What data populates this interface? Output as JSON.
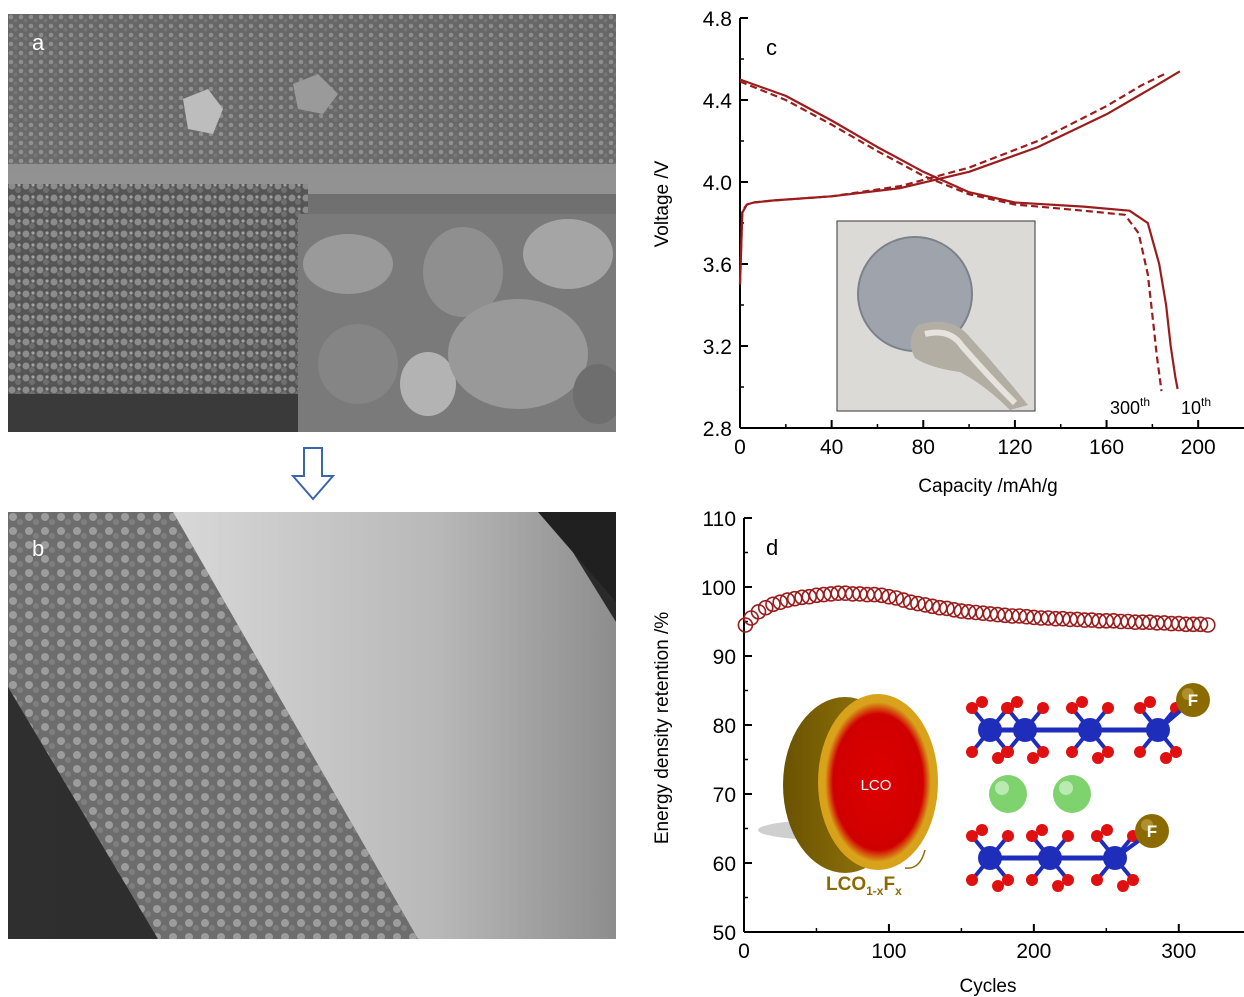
{
  "panels": {
    "a": {
      "label": "a"
    },
    "b": {
      "label": "b"
    },
    "c": {
      "label": "c"
    },
    "d": {
      "label": "d"
    }
  },
  "colors": {
    "curve": "#9b1c1c",
    "lco_core": "#cc0000",
    "shell": "#b8860b",
    "atom_co": "#1f2dbb",
    "atom_o": "#e01010",
    "atom_li": "#7ed36e"
  },
  "chart_data": [
    {
      "type": "line",
      "panel": "c",
      "xlabel": "Capacity /mAh/g",
      "ylabel": "Voltage /V",
      "xlim": [
        0,
        220
      ],
      "ylim": [
        2.8,
        4.8
      ],
      "xticks": [
        0,
        40,
        80,
        120,
        160,
        200
      ],
      "yticks": [
        2.8,
        3.2,
        3.6,
        4.0,
        4.4,
        4.8
      ],
      "ytick_labels": [
        "2.8",
        "3.2",
        "3.6",
        "4.0",
        "4.4",
        "4.8"
      ],
      "series": [
        {
          "name": "10th",
          "segment": "charge",
          "style": "solid",
          "x": [
            0,
            1,
            3,
            6,
            15,
            40,
            70,
            100,
            130,
            160,
            180,
            192
          ],
          "y": [
            3.5,
            3.85,
            3.89,
            3.9,
            3.91,
            3.93,
            3.97,
            4.05,
            4.17,
            4.33,
            4.46,
            4.54
          ]
        },
        {
          "name": "10th",
          "segment": "discharge",
          "style": "solid",
          "x": [
            0,
            20,
            40,
            60,
            80,
            100,
            120,
            150,
            170,
            178,
            183,
            186,
            188,
            190,
            191
          ],
          "y": [
            4.5,
            4.42,
            4.3,
            4.17,
            4.05,
            3.95,
            3.9,
            3.88,
            3.86,
            3.8,
            3.6,
            3.4,
            3.2,
            3.05,
            2.99
          ]
        },
        {
          "name": "300th",
          "segment": "charge",
          "style": "dashed",
          "x": [
            0,
            1,
            3,
            6,
            15,
            40,
            70,
            100,
            130,
            160,
            175,
            186
          ],
          "y": [
            3.5,
            3.86,
            3.89,
            3.9,
            3.91,
            3.93,
            3.98,
            4.07,
            4.2,
            4.37,
            4.47,
            4.53
          ]
        },
        {
          "name": "300th",
          "segment": "discharge",
          "style": "dashed",
          "x": [
            0,
            20,
            40,
            60,
            80,
            100,
            120,
            150,
            168,
            174,
            178,
            180,
            182,
            184
          ],
          "y": [
            4.49,
            4.4,
            4.28,
            4.15,
            4.03,
            3.94,
            3.89,
            3.86,
            3.84,
            3.75,
            3.55,
            3.35,
            3.15,
            2.98
          ]
        }
      ],
      "annotations": [
        {
          "base": "300",
          "sup": "th"
        },
        {
          "base": "10",
          "sup": "th"
        }
      ]
    },
    {
      "type": "scatter",
      "panel": "d",
      "xlabel": "Cycles",
      "ylabel": "Energy density retention /%",
      "xlim": [
        0,
        345
      ],
      "ylim": [
        50,
        110
      ],
      "xticks": [
        0,
        100,
        200,
        300
      ],
      "yticks": [
        50,
        60,
        70,
        80,
        90,
        100,
        110
      ],
      "series": [
        {
          "name": "",
          "marker": "open-circle",
          "x": [
            1,
            5,
            10,
            15,
            20,
            25,
            30,
            35,
            40,
            45,
            50,
            55,
            60,
            65,
            70,
            75,
            80,
            85,
            90,
            95,
            100,
            105,
            110,
            115,
            120,
            125,
            130,
            135,
            140,
            145,
            150,
            155,
            160,
            165,
            170,
            175,
            180,
            185,
            190,
            195,
            200,
            205,
            210,
            215,
            220,
            225,
            230,
            235,
            240,
            245,
            250,
            255,
            260,
            265,
            270,
            275,
            280,
            285,
            290,
            295,
            300,
            305,
            310,
            315,
            320
          ],
          "y": [
            94.5,
            95.5,
            96.4,
            97.0,
            97.5,
            97.8,
            98.1,
            98.3,
            98.5,
            98.6,
            98.8,
            98.9,
            99.0,
            99.1,
            99.1,
            99.0,
            99.0,
            98.9,
            98.9,
            98.8,
            98.6,
            98.4,
            98.1,
            97.8,
            97.6,
            97.4,
            97.2,
            97.0,
            96.9,
            96.7,
            96.5,
            96.4,
            96.3,
            96.2,
            96.1,
            96.0,
            95.9,
            95.8,
            95.8,
            95.7,
            95.6,
            95.5,
            95.5,
            95.4,
            95.4,
            95.3,
            95.3,
            95.2,
            95.2,
            95.1,
            95.1,
            95.1,
            95.0,
            95.0,
            94.9,
            94.9,
            94.9,
            94.8,
            94.8,
            94.7,
            94.7,
            94.6,
            94.6,
            94.6,
            94.5
          ]
        }
      ],
      "inset_labels": {
        "core": "LCO",
        "shell_base": "LCO",
        "shell_sub": "1-x",
        "shell_mid": "F",
        "shell_sub2": "x",
        "atom_f_top": "F",
        "atom_f_bottom": "F"
      }
    }
  ]
}
